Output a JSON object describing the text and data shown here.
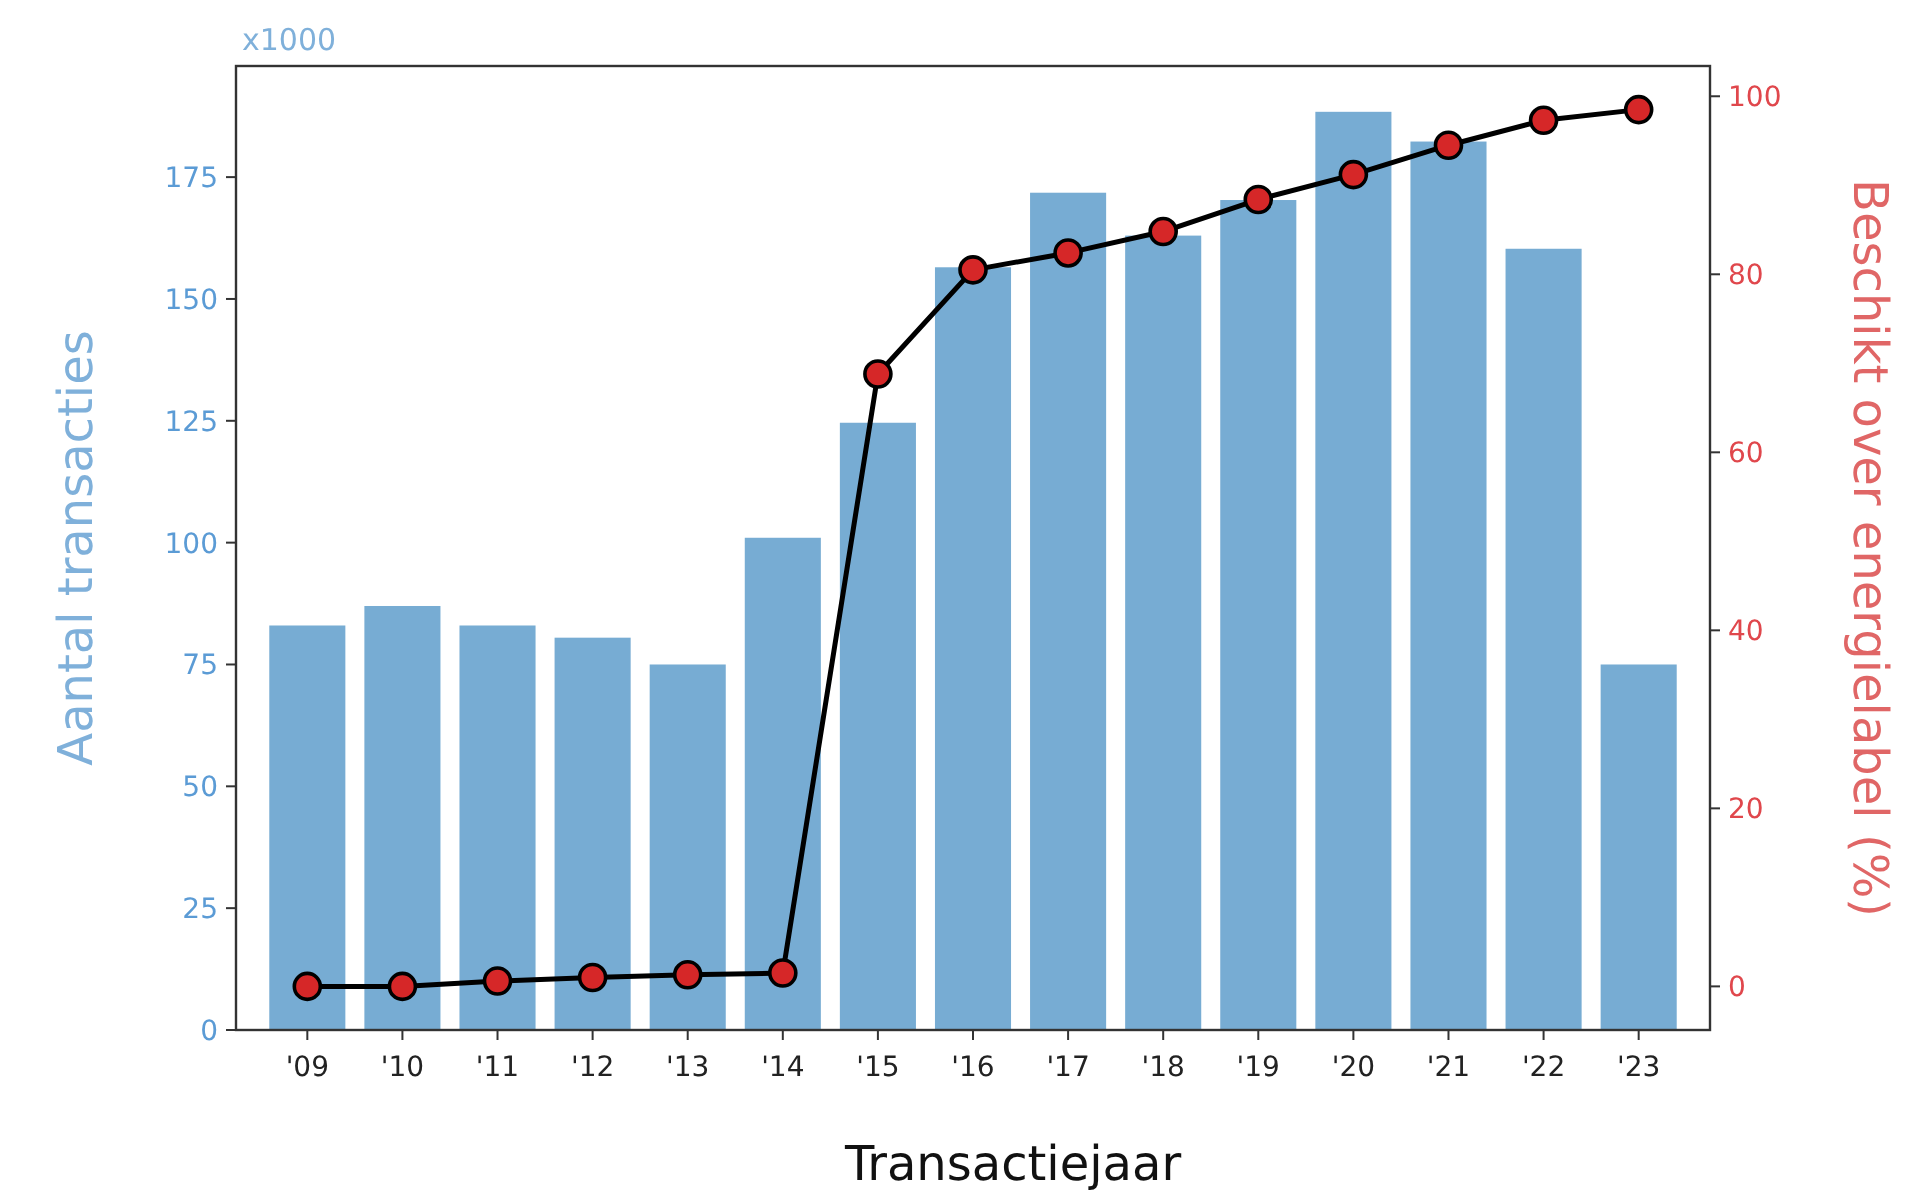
{
  "chart_data": {
    "type": "bar",
    "xlabel": "Transactiejaar",
    "ylabel": "Aantal transacties",
    "y2label": "Beschikt over energielabel (%)",
    "annotations": [
      "x1000"
    ],
    "categories": [
      "'09",
      "'10",
      "'11",
      "'12",
      "'13",
      "'14",
      "'15",
      "'16",
      "'17",
      "'18",
      "'19",
      "'20",
      "'21",
      "'22",
      "'23"
    ],
    "series": [
      {
        "color": "#77acd3",
        "values": [
          83,
          87,
          83,
          80.5,
          75,
          101,
          124.6,
          156.5,
          171.8,
          163,
          170.3,
          188.4,
          182.3,
          160.3,
          75
        ]
      },
      {
        "type": "line",
        "axis": "y2",
        "color": "#000000",
        "values": [
          0,
          0,
          0.6,
          1,
          1.3,
          1.5,
          68.8,
          80.5,
          82.4,
          84.8,
          88.4,
          91.2,
          94.5,
          97.3,
          98.5
        ]
      }
    ],
    "ylim": [
      0,
      197.8
    ],
    "yticks": [
      0,
      25,
      50,
      75,
      100,
      125,
      150,
      175
    ],
    "y2lim": [
      -4.9,
      103.4
    ],
    "y2ticks": [
      0,
      20,
      40,
      60,
      80,
      100
    ],
    "marker": "circle",
    "line_style": "solid",
    "grid": false
  }
}
